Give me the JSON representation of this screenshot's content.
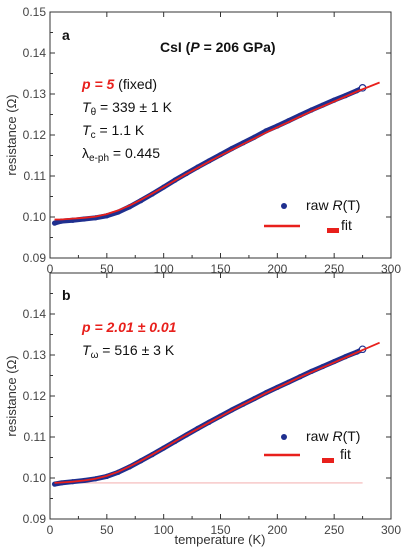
{
  "colors": {
    "data": "#1f2f8f",
    "fit": "#e8201c",
    "axis": "#333333",
    "baseline": "#f0a0a0"
  },
  "xlabel": "temperature (K)",
  "xlim": [
    0,
    300
  ],
  "xticks": [
    0,
    50,
    100,
    150,
    200,
    250,
    300
  ],
  "chart_data": [
    {
      "type": "scatter",
      "panel": "a",
      "title": "CsI (P = 206 GPa)",
      "title_parts": [
        "CsI (",
        "P",
        " = 206 GPa)"
      ],
      "ylabel": "resistance (Ω)",
      "ylim": [
        0.09,
        0.15
      ],
      "yticks": [
        "0.09",
        "0.10",
        "0.11",
        "0.12",
        "0.13",
        "0.14",
        "0.15"
      ],
      "series": [
        {
          "name": "raw R(T)",
          "name_parts": [
            "raw ",
            "R",
            "(T)"
          ],
          "kind": "points",
          "x": [
            4,
            10,
            20,
            30,
            40,
            50,
            60,
            70,
            80,
            90,
            100,
            110,
            120,
            130,
            140,
            150,
            160,
            170,
            180,
            190,
            200,
            210,
            220,
            230,
            240,
            250,
            260,
            270,
            275
          ],
          "y": [
            0.0985,
            0.099,
            0.0992,
            0.0995,
            0.0998,
            0.1003,
            0.1012,
            0.1025,
            0.104,
            0.1056,
            0.1073,
            0.109,
            0.1106,
            0.1122,
            0.1137,
            0.1152,
            0.1167,
            0.1181,
            0.1195,
            0.121,
            0.1222,
            0.1235,
            0.1248,
            0.1261,
            0.1273,
            0.1285,
            0.1296,
            0.1308,
            0.1315
          ]
        },
        {
          "name": "fit",
          "kind": "line",
          "x": [
            4,
            10,
            20,
            30,
            40,
            50,
            60,
            70,
            80,
            90,
            100,
            110,
            120,
            130,
            140,
            150,
            160,
            170,
            180,
            190,
            200,
            210,
            220,
            230,
            240,
            250,
            260,
            270,
            280,
            290
          ],
          "y": [
            0.0994,
            0.0994,
            0.0996,
            0.0998,
            0.1001,
            0.1007,
            0.1016,
            0.1028,
            0.1042,
            0.1057,
            0.1073,
            0.1089,
            0.1105,
            0.112,
            0.1135,
            0.115,
            0.1164,
            0.1178,
            0.1192,
            0.1206,
            0.1219,
            0.1232,
            0.1245,
            0.1258,
            0.127,
            0.1282,
            0.1294,
            0.1306,
            0.1317,
            0.1328
          ]
        }
      ],
      "annotations": {
        "p_label": "p = 5",
        "p_suffix": " (fixed)",
        "theta_var": "T",
        "theta_sub": "θ",
        "theta_rest": " = 339 ± 1 K",
        "tc_var": "T",
        "tc_sub": "c",
        "tc_rest": " = 1.1 K",
        "lambda_var": "λ",
        "lambda_sub": "e-ph",
        "lambda_rest": " = 0.445"
      }
    },
    {
      "type": "scatter",
      "panel": "b",
      "ylabel": "resistance (Ω)",
      "ylim": [
        0.09,
        0.15
      ],
      "yticks": [
        "0.09",
        "0.10",
        "0.11",
        "0.12",
        "0.13",
        "0.14",
        ""
      ],
      "series": [
        {
          "name": "raw R(T)",
          "name_parts": [
            "raw ",
            "R",
            "(T)"
          ],
          "kind": "points",
          "x": [
            4,
            10,
            20,
            30,
            40,
            50,
            60,
            70,
            80,
            90,
            100,
            110,
            120,
            130,
            140,
            150,
            160,
            170,
            180,
            190,
            200,
            210,
            220,
            230,
            240,
            250,
            260,
            270,
            275
          ],
          "y": [
            0.0985,
            0.0988,
            0.0991,
            0.0994,
            0.0998,
            0.1004,
            0.1014,
            0.1027,
            0.1042,
            0.1057,
            0.1073,
            0.1089,
            0.1105,
            0.1121,
            0.1136,
            0.1151,
            0.1166,
            0.118,
            0.1194,
            0.1208,
            0.1221,
            0.1234,
            0.1247,
            0.126,
            0.1272,
            0.1284,
            0.1296,
            0.1307,
            0.1314
          ]
        },
        {
          "name": "fit",
          "kind": "line",
          "x": [
            4,
            10,
            20,
            30,
            40,
            50,
            60,
            70,
            80,
            90,
            100,
            110,
            120,
            130,
            140,
            150,
            160,
            170,
            180,
            190,
            200,
            210,
            220,
            230,
            240,
            250,
            260,
            270,
            280,
            290
          ],
          "y": [
            0.0988,
            0.0989,
            0.0991,
            0.0994,
            0.0998,
            0.1005,
            0.1015,
            0.1028,
            0.1042,
            0.1057,
            0.1073,
            0.1089,
            0.1105,
            0.112,
            0.1135,
            0.115,
            0.1165,
            0.1179,
            0.1193,
            0.1207,
            0.122,
            0.1233,
            0.1246,
            0.1258,
            0.127,
            0.1282,
            0.1294,
            0.1306,
            0.1318,
            0.133
          ]
        }
      ],
      "baseline_y": 0.0988,
      "annotations": {
        "p_label": "p = 2.01 ± 0.01",
        "omega_var": "T",
        "omega_sub": "ω",
        "omega_rest": " = 516 ± 3 K"
      }
    }
  ]
}
